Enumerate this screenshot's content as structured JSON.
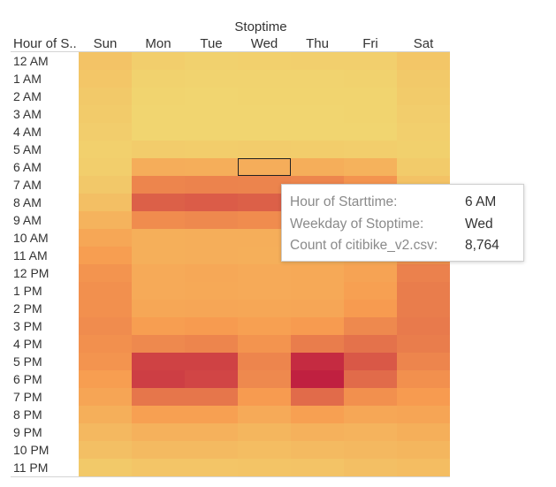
{
  "chart_data": {
    "type": "heatmap",
    "title": "Stoptime",
    "row_header": "Hour of S..",
    "columns": [
      "Sun",
      "Mon",
      "Tue",
      "Wed",
      "Thu",
      "Fri",
      "Sat"
    ],
    "rows": [
      "12 AM",
      "1 AM",
      "2 AM",
      "3 AM",
      "4 AM",
      "5 AM",
      "6 AM",
      "7 AM",
      "8 AM",
      "9 AM",
      "10 AM",
      "11 AM",
      "12 PM",
      "1 PM",
      "2 PM",
      "3 PM",
      "4 PM",
      "5 PM",
      "6 PM",
      "7 PM",
      "8 PM",
      "9 PM",
      "10 PM",
      "11 PM"
    ],
    "value_label": "Count of citibike_v2.csv",
    "values": [
      [
        4200,
        1800,
        1300,
        1500,
        1600,
        1700,
        3600
      ],
      [
        3600,
        1000,
        800,
        900,
        900,
        1000,
        3000
      ],
      [
        3000,
        600,
        500,
        600,
        600,
        700,
        2500
      ],
      [
        2500,
        500,
        400,
        500,
        500,
        600,
        2000
      ],
      [
        2000,
        500,
        400,
        500,
        500,
        500,
        1600
      ],
      [
        1500,
        2200,
        2100,
        2200,
        2100,
        1900,
        1400
      ],
      [
        1800,
        8800,
        8600,
        8764,
        8700,
        7800,
        2500
      ],
      [
        3200,
        15500,
        15800,
        15600,
        15400,
        13500,
        4500
      ],
      [
        5000,
        20500,
        21000,
        20500,
        20000,
        17500,
        6500
      ],
      [
        7500,
        14500,
        15000,
        14500,
        14500,
        13000,
        8500
      ],
      [
        10000,
        8500,
        8700,
        8600,
        8600,
        8800,
        11000
      ],
      [
        12000,
        8500,
        8600,
        8500,
        8400,
        9500,
        13500
      ],
      [
        13500,
        9500,
        9800,
        9500,
        9600,
        11000,
        16000
      ],
      [
        14000,
        9500,
        9700,
        9500,
        9700,
        11500,
        16500
      ],
      [
        14000,
        10000,
        10300,
        10000,
        10200,
        12500,
        16500
      ],
      [
        14500,
        12000,
        12500,
        11500,
        12500,
        15000,
        17000
      ],
      [
        14000,
        15000,
        15500,
        13500,
        16500,
        18000,
        16500
      ],
      [
        13500,
        24500,
        24500,
        15500,
        27500,
        21500,
        15500
      ],
      [
        12000,
        25000,
        24000,
        15000,
        29000,
        19000,
        14000
      ],
      [
        10500,
        17500,
        17500,
        12500,
        19000,
        14000,
        12500
      ],
      [
        8500,
        11500,
        11500,
        9500,
        11500,
        10000,
        10500
      ],
      [
        6500,
        8000,
        8000,
        7000,
        8000,
        7500,
        8500
      ],
      [
        5000,
        6000,
        6000,
        5500,
        6000,
        6500,
        7000
      ],
      [
        3000,
        3800,
        3800,
        4000,
        4200,
        5000,
        5500
      ]
    ],
    "color_scale": {
      "low": "#f1d570",
      "mid": "#f79c50",
      "high": "#c02040",
      "min": 400,
      "max": 29000
    },
    "highlight": {
      "row": "6 AM",
      "column": "Wed"
    }
  },
  "tooltip": {
    "rows": [
      {
        "label": "Hour of Starttime:",
        "value": "6 AM"
      },
      {
        "label": "Weekday of Stoptime:",
        "value": "Wed"
      },
      {
        "label": "Count of citibike_v2.csv:",
        "value": "8,764"
      }
    ]
  }
}
